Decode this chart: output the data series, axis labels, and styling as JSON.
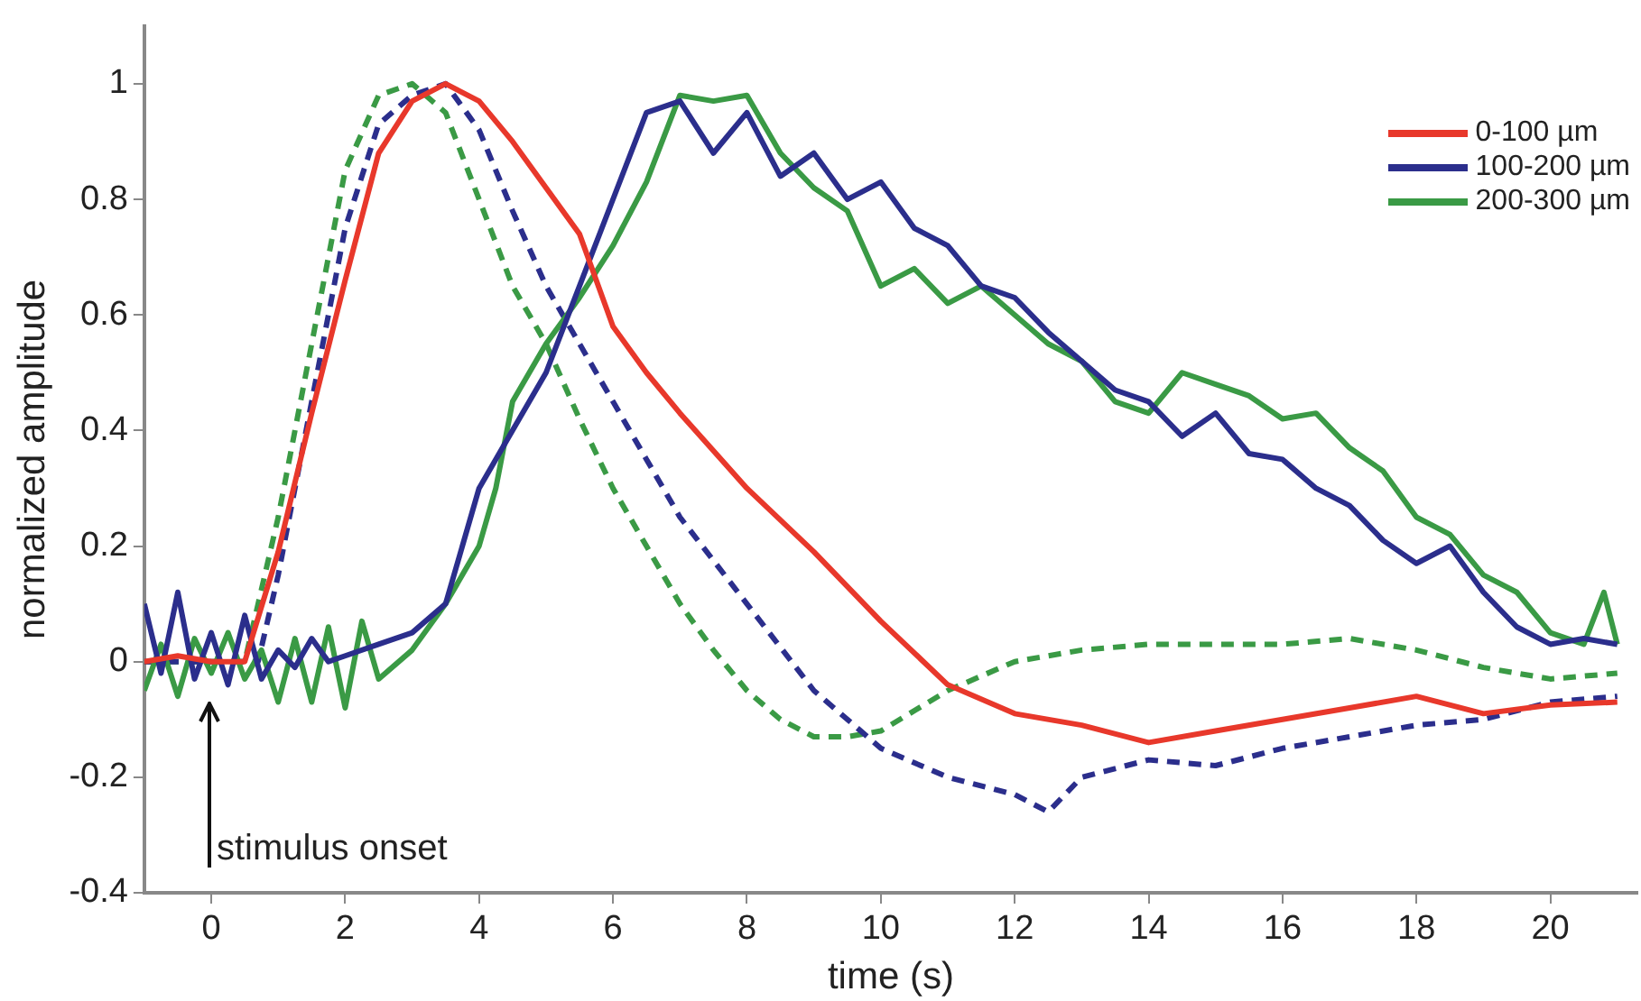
{
  "chart_data": {
    "type": "line",
    "xlabel": "time (s)",
    "ylabel": "normalized amplitude",
    "xlim": [
      -1,
      21.3
    ],
    "ylim": [
      -0.4,
      1.1
    ],
    "xticks": [
      0,
      2,
      4,
      6,
      8,
      10,
      12,
      14,
      16,
      18,
      20
    ],
    "yticks": [
      -0.4,
      -0.2,
      0,
      0.2,
      0.4,
      0.6,
      0.8,
      1
    ],
    "grid": false,
    "legend": "top right",
    "marker": "none",
    "annotations": [
      "stimulus onset"
    ],
    "series": [
      {
        "name": "0-100 µm",
        "color": "#e8382b",
        "line_style": "solid",
        "x": [
          -1,
          -0.5,
          0,
          0.5,
          1,
          1.5,
          2,
          2.5,
          3,
          3.5,
          4,
          4.5,
          5,
          5.5,
          6,
          6.5,
          7,
          8,
          9,
          10,
          11,
          12,
          13,
          14,
          15,
          16,
          17,
          18,
          19,
          20,
          21
        ],
        "values": [
          0,
          0.01,
          0,
          0,
          0.19,
          0.43,
          0.66,
          0.88,
          0.97,
          1,
          0.97,
          0.9,
          0.82,
          0.74,
          0.58,
          0.5,
          0.43,
          0.3,
          0.19,
          0.07,
          -0.04,
          -0.09,
          -0.11,
          -0.14,
          -0.12,
          -0.1,
          -0.08,
          -0.06,
          -0.09,
          -0.075,
          -0.07
        ]
      },
      {
        "name": "100-200 µm",
        "color": "#2b2e8c",
        "line_style": "solid",
        "x": [
          -1,
          -0.75,
          -0.5,
          -0.25,
          0,
          0.25,
          0.5,
          0.75,
          1,
          1.25,
          1.5,
          1.75,
          2,
          2.5,
          3,
          3.5,
          4,
          4.5,
          5,
          5.5,
          6,
          6.5,
          7,
          7.5,
          8,
          8.5,
          9,
          9.5,
          10,
          10.5,
          11,
          11.5,
          12,
          12.5,
          13,
          13.5,
          14,
          14.5,
          15,
          15.5,
          16,
          16.5,
          17,
          17.5,
          18,
          18.5,
          19,
          19.5,
          20,
          20.5,
          21
        ],
        "values": [
          0.1,
          -0.02,
          0.12,
          -0.03,
          0.05,
          -0.04,
          0.08,
          -0.03,
          0.02,
          -0.01,
          0.04,
          0,
          0.01,
          0.03,
          0.05,
          0.1,
          0.3,
          0.4,
          0.5,
          0.65,
          0.8,
          0.95,
          0.97,
          0.88,
          0.95,
          0.84,
          0.88,
          0.8,
          0.83,
          0.75,
          0.72,
          0.65,
          0.63,
          0.57,
          0.52,
          0.47,
          0.45,
          0.39,
          0.43,
          0.36,
          0.35,
          0.3,
          0.27,
          0.21,
          0.17,
          0.2,
          0.12,
          0.06,
          0.03,
          0.04,
          0.03
        ]
      },
      {
        "name": "200-300 µm",
        "color": "#3a9a45",
        "line_style": "solid",
        "x": [
          -1,
          -0.75,
          -0.5,
          -0.25,
          0,
          0.25,
          0.5,
          0.75,
          1,
          1.25,
          1.5,
          1.75,
          2,
          2.25,
          2.5,
          3,
          3.5,
          4,
          4.25,
          4.5,
          5,
          5.5,
          6,
          6.5,
          7,
          7.5,
          8,
          8.5,
          9,
          9.5,
          10,
          10.5,
          11,
          11.5,
          12,
          12.5,
          13,
          13.5,
          14,
          14.5,
          15,
          15.5,
          16,
          16.5,
          17,
          17.5,
          18,
          18.5,
          19,
          19.5,
          20,
          20.5,
          20.8,
          21
        ],
        "values": [
          -0.05,
          0.03,
          -0.06,
          0.04,
          -0.02,
          0.05,
          -0.03,
          0.02,
          -0.07,
          0.04,
          -0.07,
          0.06,
          -0.08,
          0.07,
          -0.03,
          0.02,
          0.1,
          0.2,
          0.3,
          0.45,
          0.55,
          0.63,
          0.72,
          0.83,
          0.98,
          0.97,
          0.98,
          0.88,
          0.82,
          0.78,
          0.65,
          0.68,
          0.62,
          0.65,
          0.6,
          0.55,
          0.52,
          0.45,
          0.43,
          0.5,
          0.48,
          0.46,
          0.42,
          0.43,
          0.37,
          0.33,
          0.25,
          0.22,
          0.15,
          0.12,
          0.05,
          0.03,
          0.12,
          0.03
        ]
      },
      {
        "color": "#2b2e8c",
        "line_style": "dashed",
        "x": [
          -1,
          0,
          0.7,
          1,
          1.5,
          2,
          2.5,
          3,
          3.5,
          4,
          4.5,
          5,
          5.5,
          6,
          6.5,
          7,
          8,
          9,
          10,
          11,
          12,
          12.5,
          13,
          14,
          15,
          16,
          17,
          18,
          19,
          20,
          21
        ],
        "values": [
          0,
          0,
          0,
          0.15,
          0.45,
          0.75,
          0.93,
          0.98,
          1,
          0.92,
          0.78,
          0.65,
          0.55,
          0.45,
          0.35,
          0.25,
          0.1,
          -0.05,
          -0.15,
          -0.2,
          -0.23,
          -0.26,
          -0.2,
          -0.17,
          -0.18,
          -0.15,
          -0.13,
          -0.11,
          -0.1,
          -0.07,
          -0.06
        ]
      },
      {
        "color": "#3a9a45",
        "line_style": "dashed",
        "x": [
          -1,
          0,
          0.5,
          1,
          1.5,
          2,
          2.5,
          3,
          3.5,
          4,
          4.5,
          5,
          5.5,
          6,
          6.5,
          7,
          7.5,
          8,
          8.5,
          9,
          9.5,
          10,
          11,
          12,
          13,
          14,
          15,
          16,
          17,
          18,
          19,
          20,
          21
        ],
        "values": [
          0,
          0,
          0,
          0.25,
          0.55,
          0.85,
          0.98,
          1,
          0.95,
          0.8,
          0.65,
          0.55,
          0.42,
          0.3,
          0.2,
          0.1,
          0.02,
          -0.05,
          -0.1,
          -0.13,
          -0.13,
          -0.12,
          -0.05,
          0,
          0.02,
          0.03,
          0.03,
          0.03,
          0.04,
          0.02,
          -0.01,
          -0.03,
          -0.02
        ]
      }
    ]
  }
}
